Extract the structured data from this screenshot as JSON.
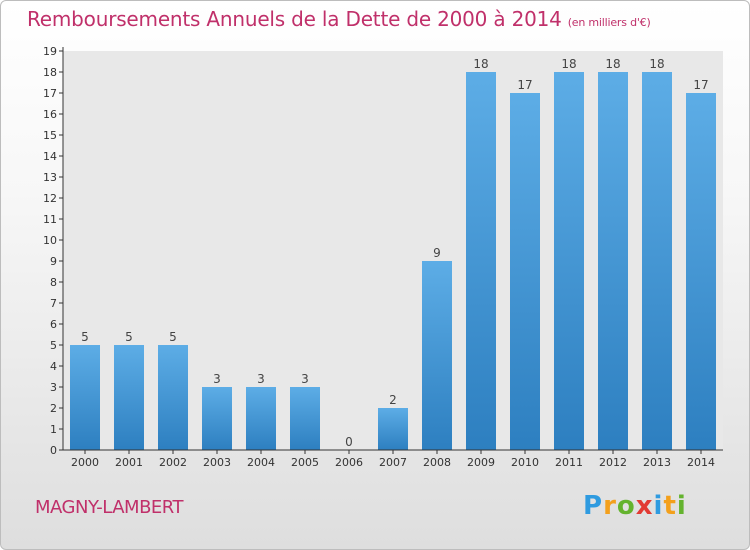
{
  "header": {
    "title": "Remboursements Annuels de la Dette de 2000 à 2014",
    "subtitle": "(en milliers d'€)"
  },
  "footer": {
    "place": "MAGNY-LAMBERT",
    "logo_letters": [
      "P",
      "r",
      "o",
      "x",
      "i",
      "t",
      "i"
    ],
    "logo_colors": [
      "#2f9be0",
      "#f3a01c",
      "#64b32e",
      "#e23a33",
      "#2f9be0",
      "#f3a01c",
      "#64b32e"
    ]
  },
  "chart_data": {
    "type": "bar",
    "title": "Remboursements Annuels de la Dette de 2000 à 2014",
    "subtitle": "(en milliers d'€)",
    "categories": [
      "2000",
      "2001",
      "2002",
      "2003",
      "2004",
      "2005",
      "2006",
      "2007",
      "2008",
      "2009",
      "2010",
      "2011",
      "2012",
      "2013",
      "2014"
    ],
    "values": [
      5,
      5,
      5,
      3,
      3,
      3,
      0,
      2,
      9,
      18,
      17,
      18,
      18,
      18,
      17
    ],
    "data_labels": [
      "5",
      "5",
      "5",
      "3",
      "3",
      "3",
      "0",
      "2",
      "9",
      "18",
      "17",
      "18",
      "18",
      "18",
      "17"
    ],
    "y_ticks": [
      "0",
      "1",
      "2",
      "3",
      "4",
      "5",
      "6",
      "7",
      "8",
      "9",
      "10",
      "11",
      "12",
      "13",
      "14",
      "15",
      "16",
      "17",
      "18",
      "19"
    ],
    "ylim": [
      0,
      19
    ],
    "xlabel": "",
    "ylabel": "",
    "grid": false,
    "bar_color_top": "#5dade6",
    "bar_color_bottom": "#2d7fc0",
    "axis_color": "#333333"
  }
}
